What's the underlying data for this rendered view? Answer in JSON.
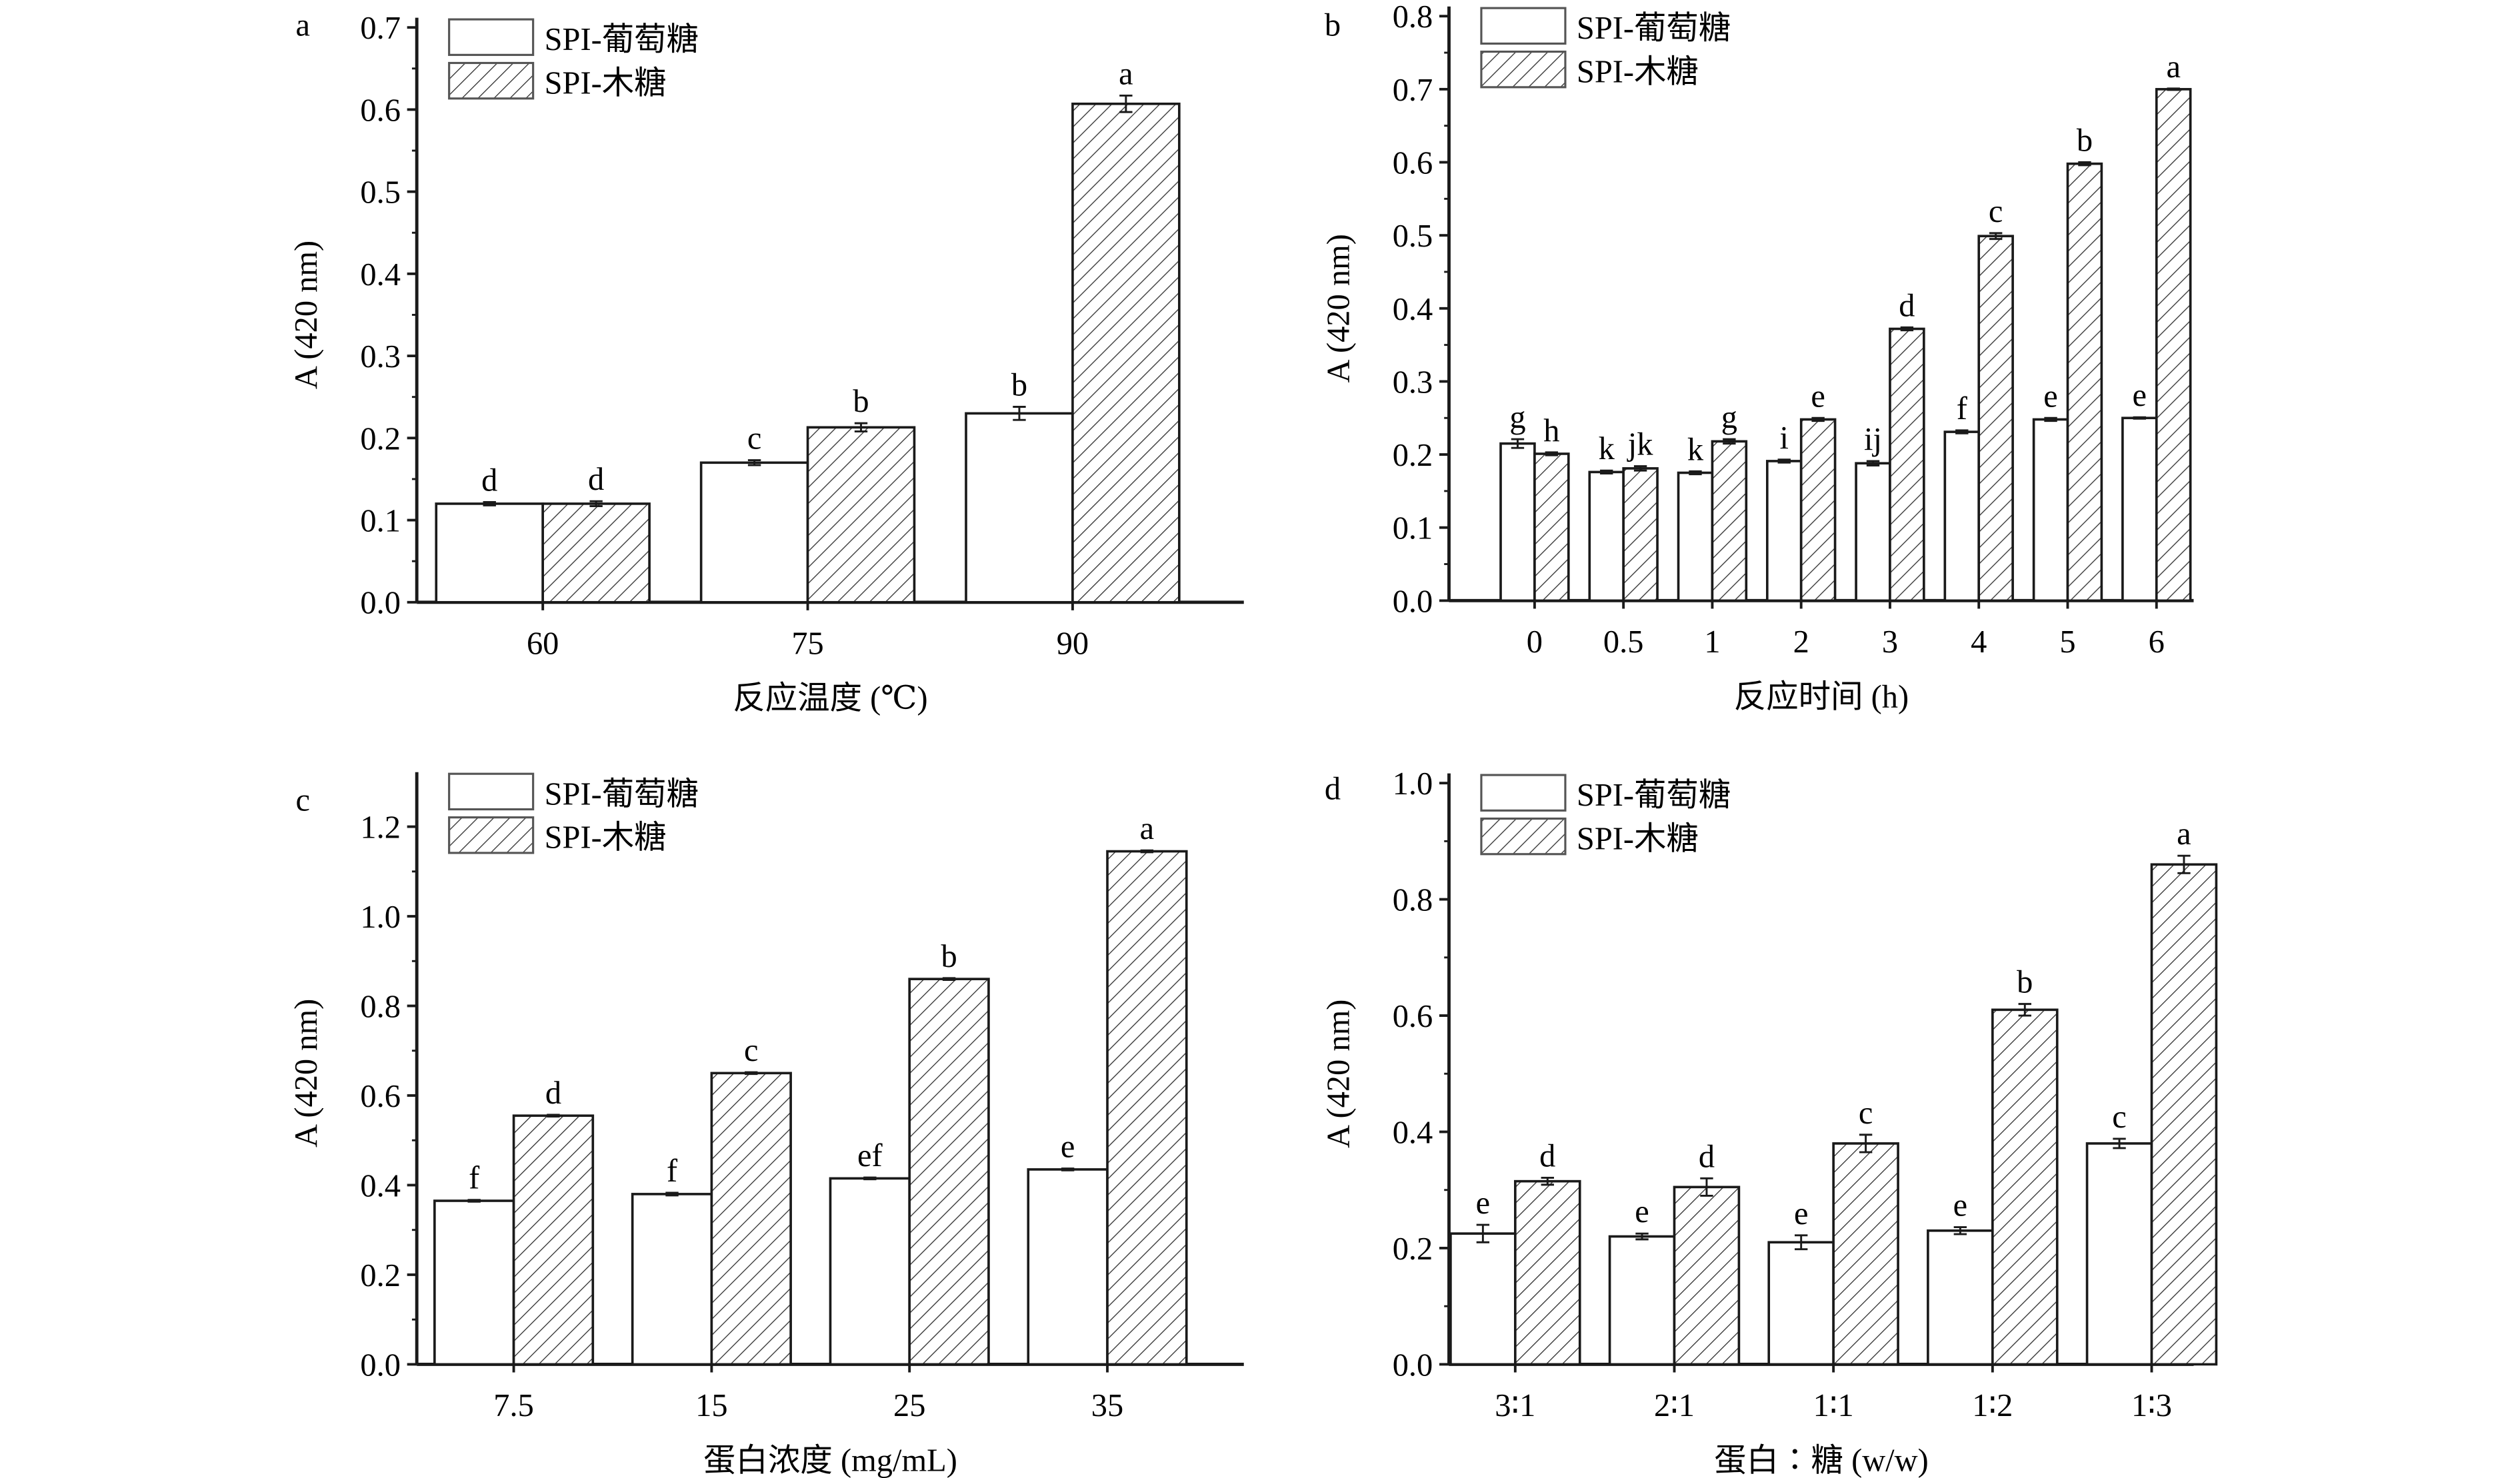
{
  "colors": {
    "axis": "#1a1a1a",
    "bar_fill": "#ffffff",
    "hatch": "#333333"
  },
  "chart_data": [
    {
      "panel": "a",
      "type": "bar",
      "legend": [
        "SPI-葡萄糖",
        "SPI-木糖"
      ],
      "legend_placement": "top-left",
      "xlabel": "反应温度 (℃)",
      "ylabel": "A (420 nm)",
      "ylim": [
        0,
        0.7
      ],
      "yticks": [
        "0.0",
        "0.1",
        "0.2",
        "0.3",
        "0.4",
        "0.5",
        "0.6",
        "0.7"
      ],
      "categories": [
        "60",
        "75",
        "90"
      ],
      "series": [
        {
          "name": "SPI-葡萄糖",
          "pattern": "solid-white",
          "values": [
            0.12,
            0.17,
            0.23
          ],
          "errors": [
            0.002,
            0.003,
            0.008
          ],
          "letters": [
            "d",
            "c",
            "b"
          ]
        },
        {
          "name": "SPI-木糖",
          "pattern": "hatched",
          "values": [
            0.12,
            0.213,
            0.607
          ],
          "errors": [
            0.003,
            0.005,
            0.01
          ],
          "letters": [
            "d",
            "b",
            "a"
          ]
        }
      ]
    },
    {
      "panel": "b",
      "type": "bar",
      "legend": [
        "SPI-葡萄糖",
        "SPI-木糖"
      ],
      "legend_placement": "top-left",
      "xlabel": "反应时间 (h)",
      "ylabel": "A (420 nm)",
      "ylim": [
        0,
        0.8
      ],
      "yticks": [
        "0.0",
        "0.1",
        "0.2",
        "0.3",
        "0.4",
        "0.5",
        "0.6",
        "0.7",
        "0.8"
      ],
      "categories": [
        "0",
        "0.5",
        "1",
        "2",
        "3",
        "4",
        "5",
        "6"
      ],
      "series": [
        {
          "name": "SPI-葡萄糖",
          "pattern": "solid-white",
          "values": [
            0.215,
            0.176,
            0.175,
            0.191,
            0.188,
            0.231,
            0.248,
            0.25
          ],
          "errors": [
            0.006,
            0.002,
            0.002,
            0.002,
            0.003,
            0.002,
            0.002,
            0.001
          ],
          "letters": [
            "g",
            "k",
            "k",
            "i",
            "ij",
            "f",
            "e",
            "e"
          ]
        },
        {
          "name": "SPI-木糖",
          "pattern": "hatched",
          "values": [
            0.201,
            0.181,
            0.218,
            0.248,
            0.372,
            0.499,
            0.598,
            0.7
          ],
          "errors": [
            0.002,
            0.003,
            0.003,
            0.002,
            0.002,
            0.004,
            0.002,
            0.001
          ],
          "letters": [
            "h",
            "jk",
            "g",
            "e",
            "d",
            "c",
            "b",
            "a"
          ]
        }
      ]
    },
    {
      "panel": "c",
      "type": "bar",
      "legend": [
        "SPI-葡萄糖",
        "SPI-木糖"
      ],
      "legend_placement": "top-left",
      "xlabel": "蛋白浓度 (mg/mL)",
      "ylabel": "A (420 nm)",
      "ylim": [
        0,
        1.3
      ],
      "yticks": [
        "0.0",
        "0.2",
        "0.4",
        "0.6",
        "0.8",
        "1.0",
        "1.2"
      ],
      "categories": [
        "7.5",
        "15",
        "25",
        "35"
      ],
      "series": [
        {
          "name": "SPI-葡萄糖",
          "pattern": "solid-white",
          "values": [
            0.365,
            0.38,
            0.415,
            0.435
          ],
          "errors": [
            0.002,
            0.003,
            0.002,
            0.002
          ],
          "letters": [
            "f",
            "f",
            "ef",
            "e"
          ]
        },
        {
          "name": "SPI-木糖",
          "pattern": "hatched",
          "values": [
            0.555,
            0.65,
            0.86,
            1.145
          ],
          "errors": [
            0.002,
            0.002,
            0.002,
            0.002
          ],
          "letters": [
            "d",
            "c",
            "b",
            "a"
          ]
        }
      ]
    },
    {
      "panel": "d",
      "type": "bar",
      "legend": [
        "SPI-葡萄糖",
        "SPI-木糖"
      ],
      "legend_placement": "top-left",
      "xlabel": "蛋白∶糖 (w/w)",
      "ylabel": "A (420 nm)",
      "ylim": [
        0,
        1.0
      ],
      "yticks": [
        "0.0",
        "0.2",
        "0.4",
        "0.6",
        "0.8",
        "1.0"
      ],
      "categories": [
        "3∶1",
        "2∶1",
        "1∶1",
        "1∶2",
        "1∶3"
      ],
      "series": [
        {
          "name": "SPI-葡萄糖",
          "pattern": "solid-white",
          "values": [
            0.225,
            0.22,
            0.21,
            0.23,
            0.38
          ],
          "errors": [
            0.015,
            0.005,
            0.012,
            0.006,
            0.008
          ],
          "letters": [
            "e",
            "e",
            "e",
            "e",
            "c"
          ]
        },
        {
          "name": "SPI-木糖",
          "pattern": "hatched",
          "values": [
            0.315,
            0.305,
            0.38,
            0.61,
            0.86
          ],
          "errors": [
            0.006,
            0.015,
            0.015,
            0.01,
            0.015
          ],
          "letters": [
            "d",
            "d",
            "c",
            "b",
            "a"
          ]
        }
      ]
    }
  ]
}
